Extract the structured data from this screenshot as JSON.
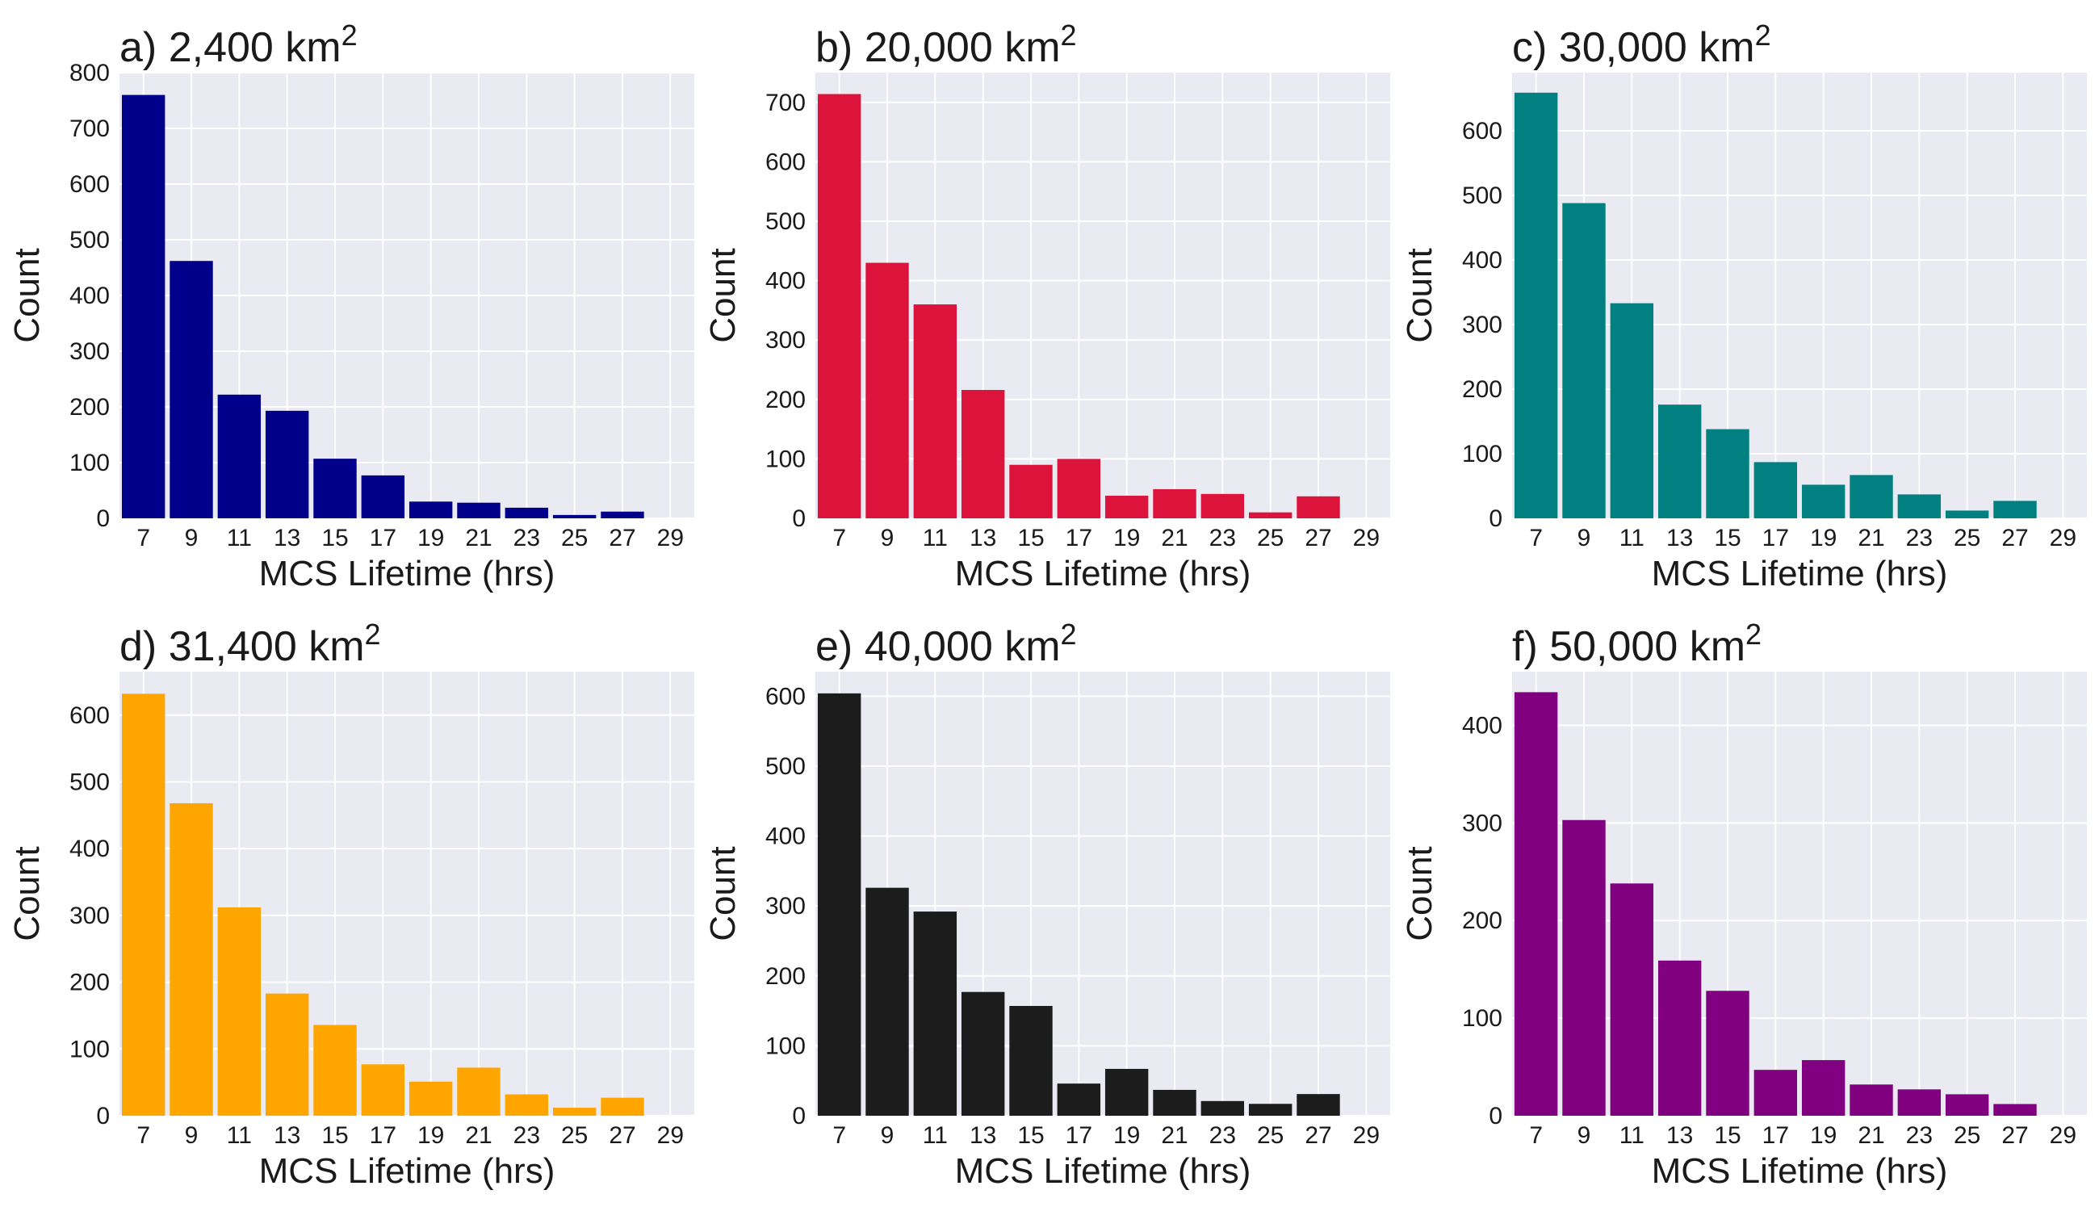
{
  "chart_data": [
    {
      "type": "bar",
      "panel": "a)",
      "title": "2,400 km",
      "title_superscript": "2",
      "xlabel": "MCS Lifetime (hrs)",
      "ylabel": "Count",
      "categories": [
        "7",
        "9",
        "11",
        "13",
        "15",
        "17",
        "19",
        "21",
        "23",
        "25",
        "27",
        "29"
      ],
      "values": [
        760,
        462,
        222,
        193,
        107,
        77,
        30,
        28,
        19,
        6,
        12,
        0
      ],
      "ylim": [
        0,
        800
      ],
      "yticks": [
        0,
        100,
        200,
        300,
        400,
        500,
        600,
        700,
        800
      ],
      "color": "#00008b",
      "grid": true
    },
    {
      "type": "bar",
      "panel": "b)",
      "title": "20,000 km",
      "title_superscript": "2",
      "xlabel": "MCS Lifetime (hrs)",
      "ylabel": "Count",
      "categories": [
        "7",
        "9",
        "11",
        "13",
        "15",
        "17",
        "19",
        "21",
        "23",
        "25",
        "27",
        "29"
      ],
      "values": [
        714,
        430,
        360,
        216,
        90,
        100,
        38,
        49,
        41,
        10,
        37,
        0
      ],
      "ylim": [
        0,
        750
      ],
      "yticks": [
        0,
        100,
        200,
        300,
        400,
        500,
        600,
        700
      ],
      "color": "#dc143c",
      "grid": true
    },
    {
      "type": "bar",
      "panel": "c)",
      "title": "30,000 km",
      "title_superscript": "2",
      "xlabel": "MCS Lifetime (hrs)",
      "ylabel": "Count",
      "categories": [
        "7",
        "9",
        "11",
        "13",
        "15",
        "17",
        "19",
        "21",
        "23",
        "25",
        "27",
        "29"
      ],
      "values": [
        659,
        488,
        333,
        176,
        138,
        87,
        52,
        67,
        37,
        12,
        27,
        0
      ],
      "ylim": [
        0,
        690
      ],
      "yticks": [
        0,
        100,
        200,
        300,
        400,
        500,
        600
      ],
      "color": "#008080",
      "grid": true
    },
    {
      "type": "bar",
      "panel": "d)",
      "title": "31,400 km",
      "title_superscript": "2",
      "xlabel": "MCS Lifetime (hrs)",
      "ylabel": "Count",
      "categories": [
        "7",
        "9",
        "11",
        "13",
        "15",
        "17",
        "19",
        "21",
        "23",
        "25",
        "27",
        "29"
      ],
      "values": [
        632,
        468,
        312,
        183,
        136,
        77,
        51,
        72,
        32,
        12,
        27,
        0
      ],
      "ylim": [
        0,
        665
      ],
      "yticks": [
        0,
        100,
        200,
        300,
        400,
        500,
        600
      ],
      "color": "#ffa500",
      "grid": true
    },
    {
      "type": "bar",
      "panel": "e)",
      "title": "40,000 km",
      "title_superscript": "2",
      "xlabel": "MCS Lifetime (hrs)",
      "ylabel": "Count",
      "categories": [
        "7",
        "9",
        "11",
        "13",
        "15",
        "17",
        "19",
        "21",
        "23",
        "25",
        "27",
        "29"
      ],
      "values": [
        604,
        326,
        292,
        177,
        157,
        46,
        67,
        37,
        21,
        17,
        31,
        0
      ],
      "ylim": [
        0,
        635
      ],
      "yticks": [
        0,
        100,
        200,
        300,
        400,
        500,
        600
      ],
      "color": "#1c1c1c",
      "grid": true
    },
    {
      "type": "bar",
      "panel": "f)",
      "title": "50,000 km",
      "title_superscript": "2",
      "xlabel": "MCS Lifetime (hrs)",
      "ylabel": "Count",
      "categories": [
        "7",
        "9",
        "11",
        "13",
        "15",
        "17",
        "19",
        "21",
        "23",
        "25",
        "27",
        "29"
      ],
      "values": [
        434,
        303,
        238,
        159,
        128,
        47,
        57,
        32,
        27,
        22,
        12,
        0
      ],
      "ylim": [
        0,
        455
      ],
      "yticks": [
        0,
        100,
        200,
        300,
        400
      ],
      "color": "#800080",
      "grid": true
    }
  ]
}
